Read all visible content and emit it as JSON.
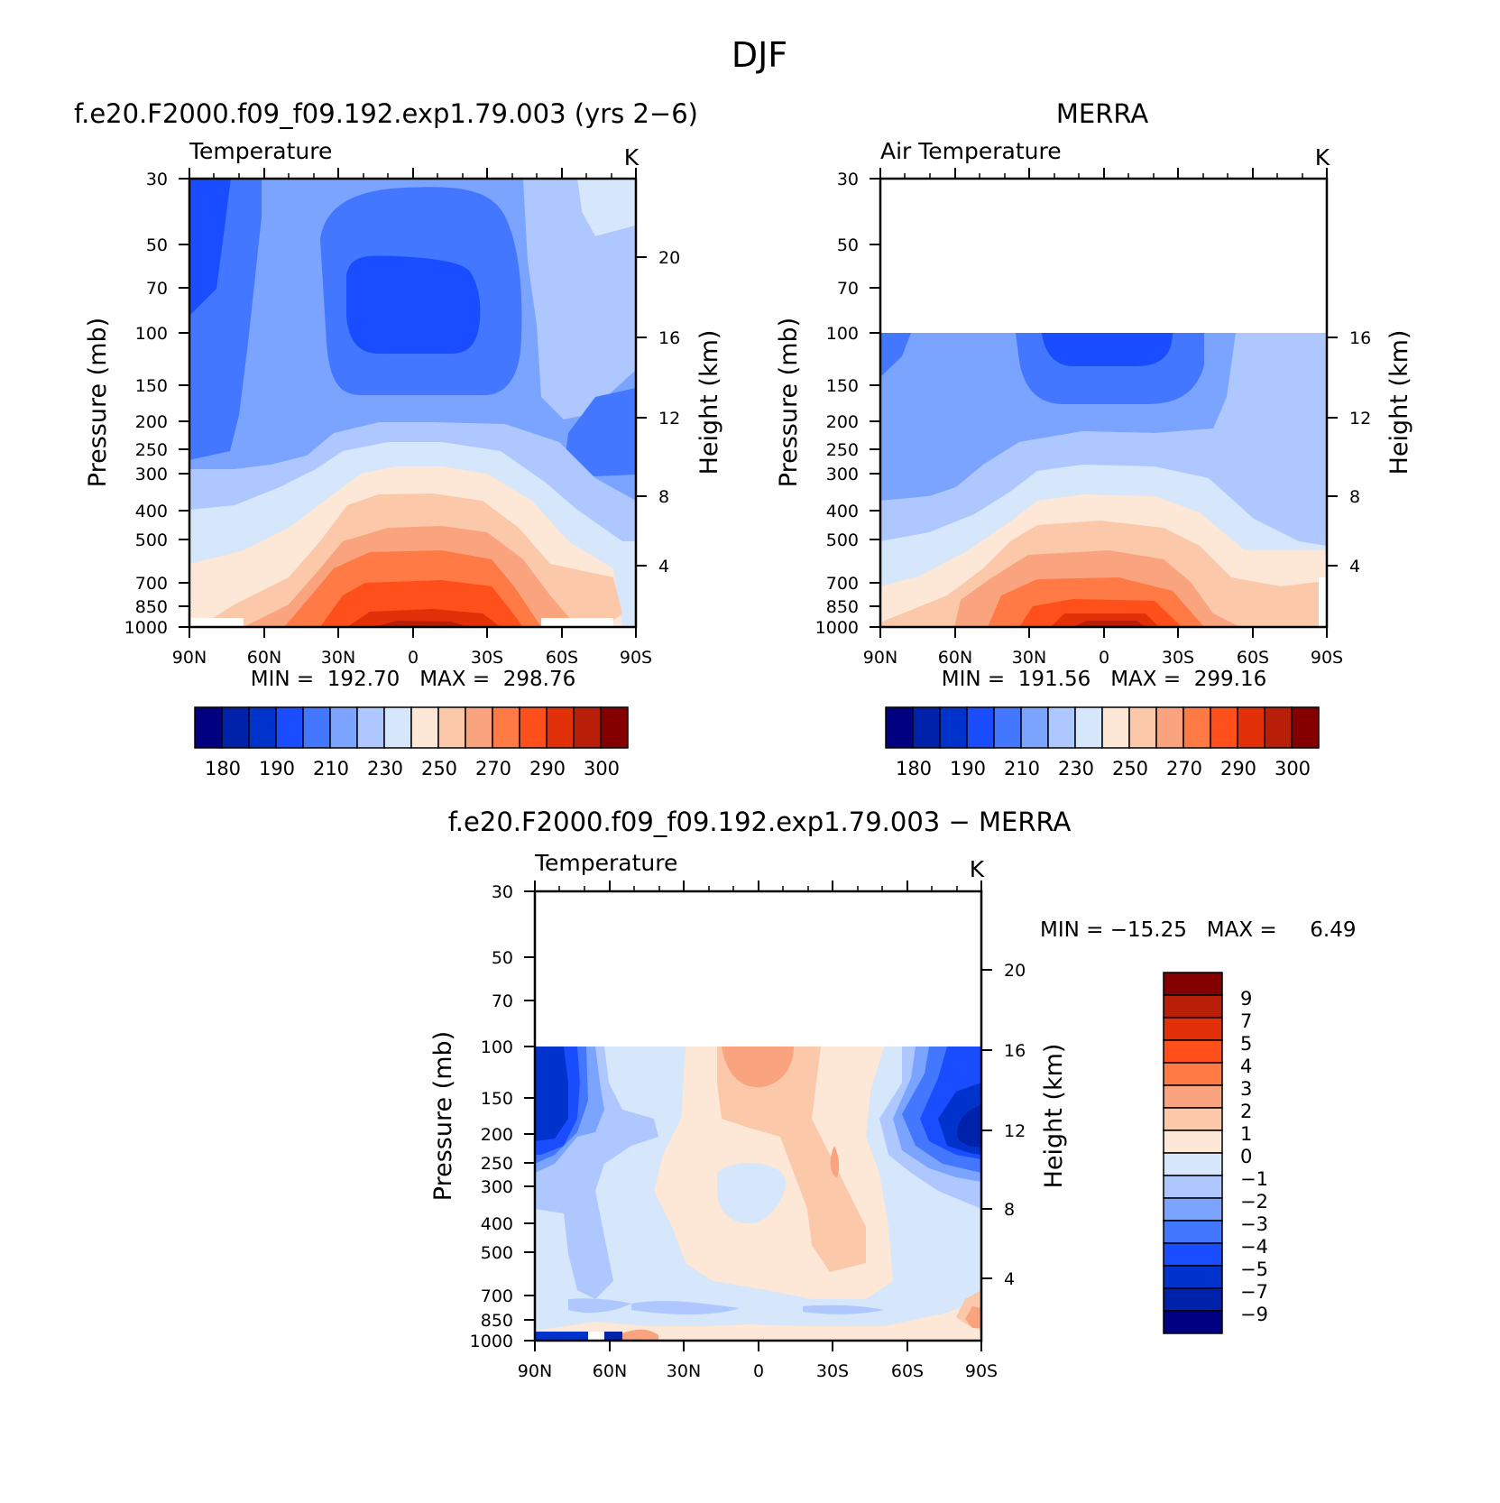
{
  "figure": {
    "title": "DJF"
  },
  "colors": {
    "abs_scale": [
      "#000080",
      "#0022aa",
      "#0033cc",
      "#1a4dff",
      "#4477ff",
      "#7aa4ff",
      "#aec8ff",
      "#d6e6fb",
      "#fde7d6",
      "#fbc8a9",
      "#f9a47e",
      "#ff7a45",
      "#ff4f1a",
      "#e23008",
      "#b81e08",
      "#840000"
    ],
    "diff_scale": [
      "#000080",
      "#0022aa",
      "#0033cc",
      "#1a4dff",
      "#4477ff",
      "#7aa4ff",
      "#aec8ff",
      "#d6e6fb",
      "#fde7d6",
      "#fbc8a9",
      "#f9a47e",
      "#ff7a45",
      "#ff4f1a",
      "#e23008",
      "#b81e08",
      "#840000"
    ]
  },
  "chart_data": [
    {
      "type": "heatmap",
      "id": "model",
      "title": "f.e20.F2000.f09_f09.192.exp1.79.003 (yrs 2−6)",
      "subtitle": "Temperature",
      "units": "K",
      "xlabel": "",
      "ylabel": "Pressure (mb)",
      "y2label": "Height (km)",
      "x_ticks": [
        "90N",
        "60N",
        "30N",
        "0",
        "30S",
        "60S",
        "90S"
      ],
      "x_values": [
        90,
        60,
        30,
        0,
        -30,
        -60,
        -90
      ],
      "y_ticks": [
        "30",
        "50",
        "70",
        "100",
        "150",
        "200",
        "250",
        "300",
        "400",
        "500",
        "700",
        "850",
        "1000"
      ],
      "y_values": [
        30,
        50,
        70,
        100,
        150,
        200,
        250,
        300,
        400,
        500,
        700,
        850,
        1000
      ],
      "y_scale": "log",
      "y2_ticks": [
        "20",
        "16",
        "12",
        "8",
        "4"
      ],
      "y2_values": [
        20,
        16,
        12,
        8,
        4
      ],
      "ylim": [
        1000,
        30
      ],
      "data_top_pressure": 30,
      "stats_text": "MIN =  192.70   MAX =  298.76",
      "min": 192.7,
      "max": 298.76,
      "colorbar_labels": [
        "180",
        "190",
        "210",
        "230",
        "250",
        "270",
        "290",
        "300"
      ],
      "colorbar_levels": [
        180,
        185,
        190,
        200,
        210,
        220,
        230,
        240,
        250,
        260,
        270,
        280,
        290,
        295,
        300
      ]
    },
    {
      "type": "heatmap",
      "id": "obs",
      "title": "MERRA",
      "subtitle": "Air Temperature",
      "units": "K",
      "xlabel": "",
      "ylabel": "Pressure (mb)",
      "y2label": "Height (km)",
      "x_ticks": [
        "90N",
        "60N",
        "30N",
        "0",
        "30S",
        "60S",
        "90S"
      ],
      "x_values": [
        90,
        60,
        30,
        0,
        -30,
        -60,
        -90
      ],
      "y_ticks": [
        "30",
        "50",
        "70",
        "100",
        "150",
        "200",
        "250",
        "300",
        "400",
        "500",
        "700",
        "850",
        "1000"
      ],
      "y_values": [
        30,
        50,
        70,
        100,
        150,
        200,
        250,
        300,
        400,
        500,
        700,
        850,
        1000
      ],
      "y_scale": "log",
      "y2_ticks": [
        "16",
        "12",
        "8",
        "4"
      ],
      "y2_values": [
        16,
        12,
        8,
        4
      ],
      "ylim": [
        1000,
        30
      ],
      "data_top_pressure": 100,
      "stats_text": "MIN =  191.56   MAX =  299.16",
      "min": 191.56,
      "max": 299.16,
      "colorbar_labels": [
        "180",
        "190",
        "210",
        "230",
        "250",
        "270",
        "290",
        "300"
      ],
      "colorbar_levels": [
        180,
        185,
        190,
        200,
        210,
        220,
        230,
        240,
        250,
        260,
        270,
        280,
        290,
        295,
        300
      ]
    },
    {
      "type": "heatmap",
      "id": "diff",
      "title": "f.e20.F2000.f09_f09.192.exp1.79.003 − MERRA",
      "subtitle": "Temperature",
      "units": "K",
      "xlabel": "",
      "ylabel": "Pressure (mb)",
      "y2label": "Height (km)",
      "x_ticks": [
        "90N",
        "60N",
        "30N",
        "0",
        "30S",
        "60S",
        "90S"
      ],
      "x_values": [
        90,
        60,
        30,
        0,
        -30,
        -60,
        -90
      ],
      "y_ticks": [
        "30",
        "50",
        "70",
        "100",
        "150",
        "200",
        "250",
        "300",
        "400",
        "500",
        "700",
        "850",
        "1000"
      ],
      "y_values": [
        30,
        50,
        70,
        100,
        150,
        200,
        250,
        300,
        400,
        500,
        700,
        850,
        1000
      ],
      "y_scale": "log",
      "y2_ticks": [
        "20",
        "16",
        "12",
        "8",
        "4"
      ],
      "y2_values": [
        20,
        16,
        12,
        8,
        4
      ],
      "ylim": [
        1000,
        30
      ],
      "data_top_pressure": 100,
      "stats_text": "MIN = −15.25   MAX =     6.49",
      "min": -15.25,
      "max": 6.49,
      "colorbar_labels": [
        "9",
        "7",
        "5",
        "4",
        "3",
        "2",
        "1",
        "0",
        "−1",
        "−2",
        "−3",
        "−4",
        "−5",
        "−7",
        "−9"
      ],
      "colorbar_levels": [
        9,
        7,
        5,
        4,
        3,
        2,
        1,
        0,
        -1,
        -2,
        -3,
        -4,
        -5,
        -7,
        -9
      ]
    }
  ]
}
